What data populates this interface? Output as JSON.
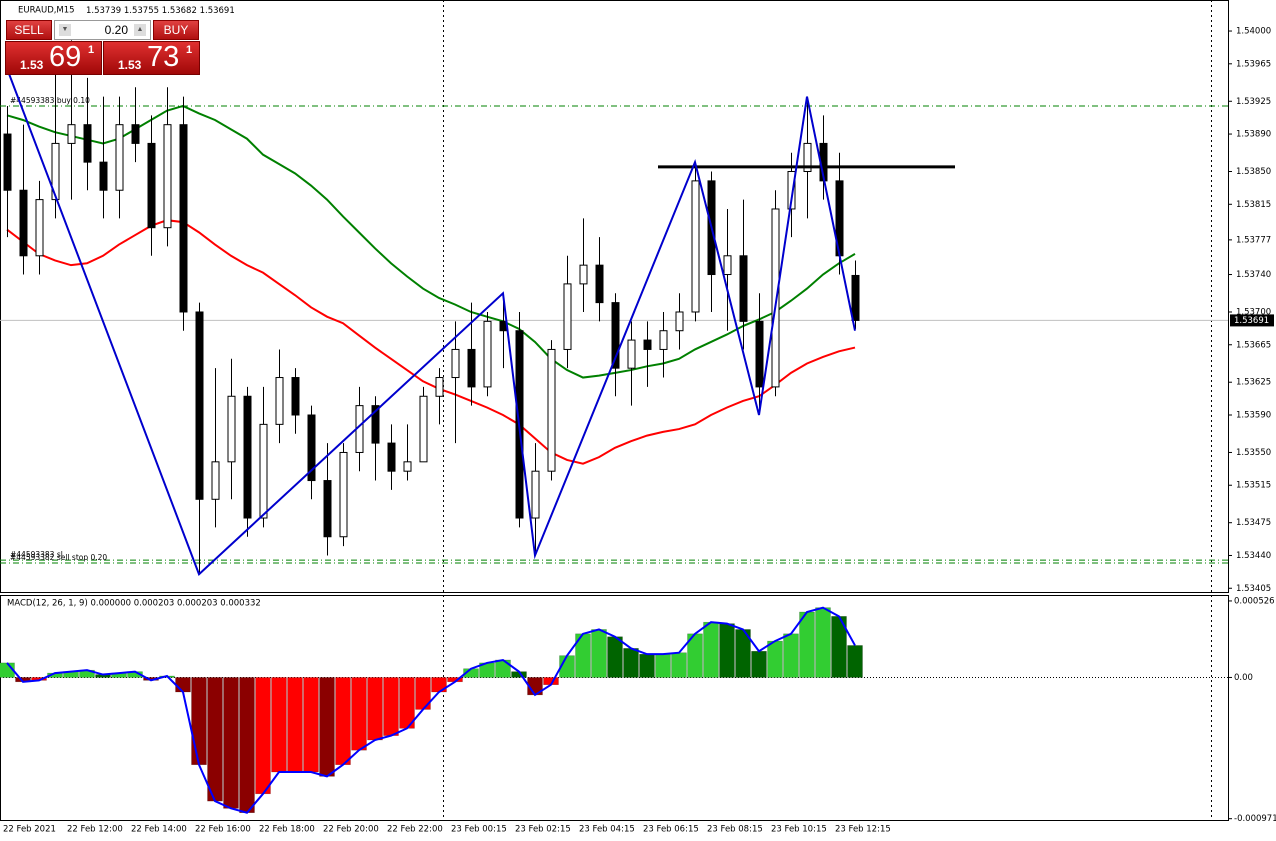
{
  "header": {
    "symbol": "EURAUD,M15"
  },
  "trade_panel": {
    "sell": "SELL",
    "buy": "BUY",
    "lot": "0.20",
    "sell_price": {
      "big": "1.53",
      "pips": "69",
      "frac": "1"
    },
    "buy_price": {
      "big": "1.53",
      "pips": "73",
      "frac": "1"
    }
  },
  "chart_data": {
    "type": "candlestick",
    "categories": [
      "22 Feb 2021",
      null,
      null,
      null,
      "22 Feb 12:00",
      null,
      null,
      null,
      "22 Feb 14:00",
      null,
      null,
      null,
      "22 Feb 16:00",
      null,
      null,
      null,
      "22 Feb 18:00",
      null,
      null,
      null,
      "22 Feb 20:00",
      null,
      null,
      null,
      "22 Feb 22:00",
      null,
      null,
      null,
      "23 Feb 00:15",
      null,
      null,
      null,
      "23 Feb 02:15",
      null,
      null,
      null,
      "23 Feb 04:15",
      null,
      null,
      null,
      "23 Feb 06:15",
      null,
      null,
      null,
      "23 Feb 08:15",
      null,
      null,
      null,
      "23 Feb 10:15",
      null,
      null,
      null,
      "23 Feb 12:15",
      null
    ],
    "open": [
      1.5389,
      1.5383,
      1.5376,
      1.5382,
      1.5388,
      1.539,
      1.5386,
      1.5383,
      1.539,
      1.5388,
      1.5379,
      1.539,
      1.537,
      1.535,
      1.5354,
      1.5361,
      1.5348,
      1.5358,
      1.5363,
      1.5359,
      1.5352,
      1.5346,
      1.5355,
      1.536,
      1.5356,
      1.5353,
      1.5354,
      1.5361,
      1.5363,
      1.5366,
      1.5362,
      1.5369,
      1.5368,
      1.5348,
      1.5353,
      1.5366,
      1.5373,
      1.5375,
      1.5371,
      1.5364,
      1.5367,
      1.5366,
      1.5368,
      1.537,
      1.5384,
      1.5374,
      1.5376,
      1.5369,
      1.5362,
      1.5381,
      1.5385,
      1.5388,
      1.5384,
      1.53739
    ],
    "high": [
      1.5392,
      1.539,
      1.5384,
      1.5396,
      1.5399,
      1.5395,
      1.5393,
      1.5393,
      1.5394,
      1.5391,
      1.5394,
      1.5393,
      1.5371,
      1.5364,
      1.5365,
      1.5362,
      1.5362,
      1.5366,
      1.5364,
      1.536,
      1.5356,
      1.5356,
      1.5362,
      1.5361,
      1.5358,
      1.5358,
      1.5362,
      1.5364,
      1.5369,
      1.5371,
      1.537,
      1.5372,
      1.537,
      1.5356,
      1.5367,
      1.5376,
      1.538,
      1.5378,
      1.5372,
      1.5369,
      1.5369,
      1.537,
      1.5372,
      1.5386,
      1.5385,
      1.5381,
      1.5382,
      1.5372,
      1.5383,
      1.5387,
      1.5393,
      1.5391,
      1.5387,
      1.53755
    ],
    "low": [
      1.5378,
      1.5374,
      1.5374,
      1.538,
      1.5382,
      1.5383,
      1.538,
      1.538,
      1.5386,
      1.5376,
      1.5377,
      1.5368,
      1.5342,
      1.5347,
      1.535,
      1.5346,
      1.5347,
      1.5356,
      1.5357,
      1.535,
      1.5344,
      1.5345,
      1.5353,
      1.5352,
      1.5351,
      1.5352,
      1.5354,
      1.5358,
      1.5356,
      1.536,
      1.5361,
      1.5364,
      1.5347,
      1.5344,
      1.5352,
      1.5364,
      1.537,
      1.5369,
      1.5361,
      1.536,
      1.5362,
      1.5363,
      1.5366,
      1.5369,
      1.537,
      1.5368,
      1.5366,
      1.5359,
      1.5361,
      1.5378,
      1.538,
      1.5382,
      1.5374,
      1.53682
    ],
    "close": [
      1.5383,
      1.5376,
      1.5382,
      1.5388,
      1.539,
      1.5386,
      1.5383,
      1.539,
      1.5388,
      1.5379,
      1.539,
      1.537,
      1.535,
      1.5354,
      1.5361,
      1.5348,
      1.5358,
      1.5363,
      1.5359,
      1.5352,
      1.5346,
      1.5355,
      1.536,
      1.5356,
      1.5353,
      1.5354,
      1.5361,
      1.5363,
      1.5366,
      1.5362,
      1.5369,
      1.5368,
      1.5348,
      1.5353,
      1.5366,
      1.5373,
      1.5375,
      1.5371,
      1.5364,
      1.5367,
      1.5366,
      1.5368,
      1.537,
      1.5384,
      1.5374,
      1.5376,
      1.5369,
      1.5362,
      1.5381,
      1.5385,
      1.5388,
      1.5384,
      1.5376,
      1.53691
    ],
    "up_color": "#ffffff",
    "down_color": "#000000",
    "ylim": [
      1.53401,
      1.54031
    ],
    "yticks": [
      {
        "value": 1.54,
        "label": "1.54000"
      },
      1.53965,
      1.53925,
      {
        "value": 1.5389,
        "label": "1.53890"
      },
      {
        "value": 1.5385,
        "label": "1.53850"
      },
      1.53815,
      1.53777,
      {
        "value": 1.5374,
        "label": "1.53740"
      },
      {
        "value": 1.537,
        "label": "1.53700"
      },
      1.53665,
      1.53625,
      {
        "value": 1.5359,
        "label": "1.53590"
      },
      {
        "value": 1.5355,
        "label": "1.53550"
      },
      1.53515,
      1.53475,
      {
        "value": 1.5344,
        "label": "1.53440"
      },
      1.53405
    ],
    "series": [
      {
        "color": "#008000",
        "values": [
          1.5391,
          1.53905,
          1.53898,
          1.53892,
          1.53888,
          1.53884,
          1.5388,
          1.53885,
          1.53895,
          1.53905,
          1.53915,
          1.5392,
          1.53912,
          1.53905,
          1.53895,
          1.53885,
          1.53868,
          1.53858,
          1.53848,
          1.53835,
          1.5382,
          1.53802,
          1.53785,
          1.53768,
          1.53752,
          1.53738,
          1.53725,
          1.53715,
          1.53708,
          1.537,
          1.53695,
          1.5369,
          1.53682,
          1.53668,
          1.5365,
          1.53638,
          1.5363,
          1.53632,
          1.53635,
          1.53638,
          1.53642,
          1.53645,
          1.5365,
          1.5366,
          1.53668,
          1.53676,
          1.53685,
          1.53692,
          1.537,
          1.53712,
          1.53725,
          1.5374,
          1.53752,
          1.53762
        ]
      },
      {
        "color": "#ff0000",
        "values": [
          1.53788,
          1.53775,
          1.53762,
          1.53755,
          1.5375,
          1.53752,
          1.5376,
          1.53772,
          1.53782,
          1.53792,
          1.53798,
          1.53796,
          1.53785,
          1.53772,
          1.5376,
          1.5375,
          1.53742,
          1.5373,
          1.53718,
          1.53705,
          1.53695,
          1.53688,
          1.53675,
          1.53662,
          1.5365,
          1.53638,
          1.53626,
          1.53618,
          1.53612,
          1.53605,
          1.53598,
          1.5359,
          1.5358,
          1.53565,
          1.5355,
          1.53542,
          1.53538,
          1.53545,
          1.53555,
          1.53562,
          1.53568,
          1.53572,
          1.53575,
          1.5358,
          1.5359,
          1.53598,
          1.53605,
          1.5361,
          1.53622,
          1.53635,
          1.53645,
          1.53652,
          1.53658,
          1.53662
        ]
      }
    ],
    "zigzag": {
      "color": "#0000cd",
      "x": [
        0,
        12,
        31,
        33,
        43,
        47,
        50,
        53
      ],
      "values": [
        1.5396,
        1.5342,
        1.5372,
        1.5344,
        1.5386,
        1.5359,
        1.5393,
        1.5368
      ]
    },
    "level": 1.53855,
    "order_lines": [
      {
        "label": "#44593383 buy 0.10",
        "value": 1.5392
      },
      {
        "label": "#44593383 sl",
        "value": 1.53435
      },
      {
        "label": "#44593382 sell stop 0.20",
        "value": 1.53432
      }
    ],
    "order_color": "#008000",
    "indicator": {
      "title": "MACD(12, 26, 1, 9) 0.000000 0.000203 0.000203 0.000332",
      "values": [
        0.0001,
        -3e-05,
        -2e-05,
        3e-05,
        4e-05,
        5e-05,
        2e-05,
        3e-05,
        4e-05,
        -2e-05,
        1e-05,
        -0.0001,
        -0.0006,
        -0.00085,
        -0.0009,
        -0.00093,
        -0.0008,
        -0.00065,
        -0.00065,
        -0.00065,
        -0.00068,
        -0.0006,
        -0.0005,
        -0.00043,
        -0.0004,
        -0.00035,
        -0.00022,
        -0.0001,
        -3e-05,
        6e-05,
        0.0001,
        0.00012,
        4e-05,
        -0.00012,
        -5e-05,
        0.00015,
        0.0003,
        0.00033,
        0.00028,
        0.0002,
        0.00016,
        0.00016,
        0.00017,
        0.0003,
        0.00038,
        0.00037,
        0.00033,
        0.00018,
        0.00025,
        0.0003,
        0.00045,
        0.00048,
        0.00042,
        0.00022
      ],
      "ylim": [
        -0.00098,
        0.00056
      ],
      "yticks": [
        0.000526,
        {
          "value": 0,
          "label": "0.00"
        },
        -0.000971
      ],
      "line_color": "#0000ff",
      "colors": {
        "rising_positive": "#32cd32",
        "falling_positive": "#006400",
        "falling_negative": "#8b0000",
        "rising_negative": "#ff0000"
      }
    }
  }
}
